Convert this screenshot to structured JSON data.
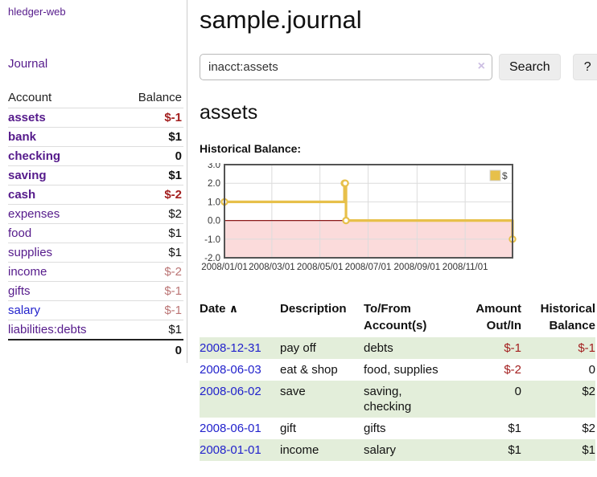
{
  "sidebar": {
    "brand": "hledger-web",
    "nav_journal": "Journal",
    "accounts": {
      "col_account": "Account",
      "col_balance": "Balance",
      "rows": [
        {
          "name": "assets",
          "indent": 1,
          "bold": true,
          "balance": "$-1",
          "neg": "strong",
          "link": "purple"
        },
        {
          "name": "bank",
          "indent": 2,
          "bold": true,
          "balance": "$1",
          "neg": "none",
          "link": "purple"
        },
        {
          "name": "checking",
          "indent": 3,
          "bold": true,
          "balance": "0",
          "neg": "none",
          "link": "purple"
        },
        {
          "name": "saving",
          "indent": 3,
          "bold": true,
          "balance": "$1",
          "neg": "none",
          "link": "purple"
        },
        {
          "name": "cash",
          "indent": 2,
          "bold": true,
          "balance": "$-2",
          "neg": "strong",
          "link": "purple"
        },
        {
          "name": "expenses",
          "indent": 1,
          "bold": false,
          "balance": "$2",
          "neg": "none",
          "link": "purple"
        },
        {
          "name": "food",
          "indent": 2,
          "bold": false,
          "balance": "$1",
          "neg": "none",
          "link": "purple"
        },
        {
          "name": "supplies",
          "indent": 2,
          "bold": false,
          "balance": "$1",
          "neg": "none",
          "link": "purple"
        },
        {
          "name": "income",
          "indent": 1,
          "bold": false,
          "balance": "$-2",
          "neg": "light",
          "link": "purple"
        },
        {
          "name": "gifts",
          "indent": 2,
          "bold": false,
          "balance": "$-1",
          "neg": "light",
          "link": "purple"
        },
        {
          "name": "salary",
          "indent": 2,
          "bold": false,
          "balance": "$-1",
          "neg": "light",
          "link": "blue"
        },
        {
          "name": "liabilities:debts",
          "indent": 1,
          "bold": false,
          "balance": "$1",
          "neg": "none",
          "link": "purple"
        }
      ],
      "total": "0"
    }
  },
  "main": {
    "title": "sample.journal",
    "search": {
      "value": "inacct:assets",
      "clear_icon": "×",
      "button_label": "Search",
      "help_label": "?"
    },
    "account_heading": "assets",
    "chart_title": "Historical Balance:"
  },
  "chart_data": {
    "type": "line",
    "step": true,
    "title": "Historical Balance",
    "legend_position": "top-right",
    "grid": true,
    "ylim": [
      -2,
      3
    ],
    "yticks": [
      "3.0",
      "2.0",
      "1.0",
      "0.0",
      "-1.0",
      "-2.0"
    ],
    "xticks": [
      "2008/01/01",
      "2008/03/01",
      "2008/05/01",
      "2008/07/01",
      "2008/09/01",
      "2008/11/01"
    ],
    "series": [
      {
        "name": "$",
        "x": [
          "2008-01-01",
          "2008-06-01",
          "2008-06-02",
          "2008-06-03",
          "2008-12-31"
        ],
        "y": [
          1,
          2,
          2,
          0,
          -1
        ]
      }
    ],
    "colors": {
      "line": "#e7c04a",
      "marker_fill": "#ffffff",
      "negative_fill": "#fbdbdb",
      "zero_line": "#8b1a1a",
      "border": "#545454",
      "gridline": "#dcdcdc"
    }
  },
  "register": {
    "headers": {
      "date": "Date",
      "sort_indicator": "∧",
      "description": "Description",
      "accounts": "To/From Account(s)",
      "amount": "Amount Out/In",
      "balance": "Historical Balance"
    },
    "rows": [
      {
        "date": "2008-12-31",
        "description": "pay off",
        "accounts": "debts",
        "amount": "$-1",
        "amount_neg": true,
        "balance": "$-1",
        "balance_neg": true
      },
      {
        "date": "2008-06-03",
        "description": "eat & shop",
        "accounts": "food, supplies",
        "amount": "$-2",
        "amount_neg": true,
        "balance": "0",
        "balance_neg": false
      },
      {
        "date": "2008-06-02",
        "description": "save",
        "accounts": "saving, checking",
        "amount": "0",
        "amount_neg": false,
        "balance": "$2",
        "balance_neg": false
      },
      {
        "date": "2008-06-01",
        "description": "gift",
        "accounts": "gifts",
        "amount": "$1",
        "amount_neg": false,
        "balance": "$2",
        "balance_neg": false
      },
      {
        "date": "2008-01-01",
        "description": "income",
        "accounts": "salary",
        "amount": "$1",
        "amount_neg": false,
        "balance": "$1",
        "balance_neg": false
      }
    ]
  }
}
